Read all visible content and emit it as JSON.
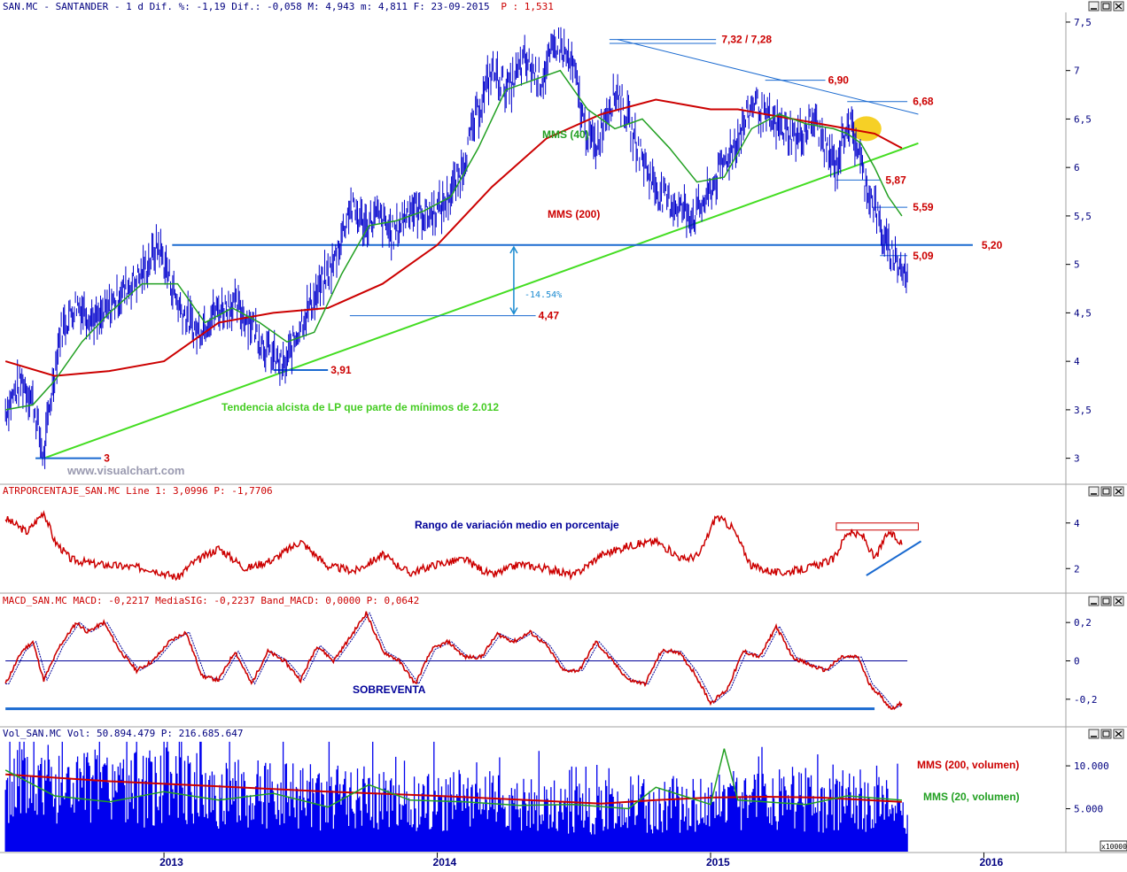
{
  "colors": {
    "price": "#0000cc",
    "mms40": "#22a022",
    "mms200": "#cc0000",
    "trend": "#44dd22",
    "support": "#1a6ad0",
    "label_red": "#cc0000",
    "header_text": "#000080",
    "header_value": "#cc0000",
    "atr_line": "#cc0000",
    "macd_line": "#cc0000",
    "macd_signal": "#000099",
    "volume_bars": "#0000ee",
    "vol_mms200": "#cc0000",
    "vol_mms20": "#22a022",
    "highlight": "#f5c800"
  },
  "header": {
    "main": "SAN.MC - SANTANDER -   1 d Dif. %: -1,19 Dif.: -0,058 M: 4,943 m: 4,811 F: 23-09-2015",
    "tail": "P : 1,531"
  },
  "watermark": "www.visualchart.com",
  "window_buttons": [
    "minimize-icon",
    "maximize-icon",
    "close-icon"
  ],
  "chart_data": [
    {
      "panel": "price",
      "type": "line",
      "ylim": [
        2.75,
        7.6
      ],
      "yticks": [
        "7,5",
        "7",
        "6,5",
        "6",
        "5,5",
        "5",
        "4,5",
        "4",
        "3,5",
        "3"
      ],
      "yticks_values": [
        7.5,
        7.0,
        6.5,
        6.0,
        5.5,
        5.0,
        4.5,
        4.0,
        3.5,
        3.0
      ],
      "series": [
        {
          "name": "",
          "x": [
            2012.42,
            2012.48,
            2012.52,
            2012.56,
            2012.58,
            2012.62,
            2012.68,
            2012.76,
            2012.84,
            2012.92,
            2012.98,
            2013.05,
            2013.12,
            2013.18,
            2013.25,
            2013.32,
            2013.38,
            2013.44,
            2013.5,
            2013.56,
            2013.62,
            2013.68,
            2013.74,
            2013.78,
            2013.84,
            2013.9,
            2013.96,
            2014.02,
            2014.08,
            2014.14,
            2014.2,
            2014.26,
            2014.32,
            2014.38,
            2014.44,
            2014.5,
            2014.54,
            2014.58,
            2014.62,
            2014.66,
            2014.72,
            2014.78,
            2014.82,
            2014.88,
            2014.94,
            2015.0,
            2015.04,
            2015.1,
            2015.16,
            2015.2,
            2015.26,
            2015.32,
            2015.38,
            2015.42,
            2015.46,
            2015.5,
            2015.54,
            2015.56,
            2015.6,
            2015.62,
            2015.64,
            2015.68,
            2015.7,
            2015.72
          ],
          "values": [
            3.5,
            3.8,
            3.6,
            3.0,
            3.5,
            4.3,
            4.6,
            4.4,
            4.7,
            4.9,
            5.2,
            4.6,
            4.3,
            4.5,
            4.6,
            4.4,
            4.1,
            3.92,
            4.4,
            4.7,
            5.0,
            5.6,
            5.4,
            5.5,
            5.3,
            5.6,
            5.5,
            5.6,
            5.9,
            6.5,
            7.0,
            6.8,
            7.1,
            6.9,
            7.3,
            7.0,
            6.4,
            6.2,
            6.6,
            6.8,
            6.3,
            5.9,
            5.7,
            5.6,
            5.5,
            5.75,
            6.0,
            6.3,
            6.7,
            6.5,
            6.4,
            6.3,
            6.5,
            6.2,
            6.0,
            6.5,
            6.2,
            5.9,
            5.6,
            5.4,
            5.2,
            5.05,
            4.95,
            4.85
          ]
        },
        {
          "name": "MMS (40)",
          "x": [
            2012.42,
            2012.52,
            2012.6,
            2012.7,
            2012.8,
            2012.92,
            2013.05,
            2013.15,
            2013.25,
            2013.35,
            2013.45,
            2013.55,
            2013.65,
            2013.75,
            2013.85,
            2013.95,
            2014.05,
            2014.15,
            2014.25,
            2014.35,
            2014.45,
            2014.55,
            2014.65,
            2014.75,
            2014.85,
            2014.95,
            2015.05,
            2015.15,
            2015.25,
            2015.35,
            2015.45,
            2015.5,
            2015.55,
            2015.6,
            2015.65,
            2015.7
          ],
          "values": [
            3.5,
            3.55,
            3.8,
            4.2,
            4.5,
            4.8,
            4.8,
            4.4,
            4.55,
            4.4,
            4.2,
            4.3,
            4.9,
            5.4,
            5.45,
            5.55,
            5.7,
            6.2,
            6.8,
            6.9,
            7.0,
            6.6,
            6.4,
            6.5,
            6.2,
            5.85,
            5.9,
            6.4,
            6.55,
            6.45,
            6.4,
            6.35,
            6.25,
            6.0,
            5.7,
            5.5
          ]
        },
        {
          "name": "MMS (200)",
          "x": [
            2012.42,
            2012.6,
            2012.8,
            2013.0,
            2013.2,
            2013.4,
            2013.6,
            2013.8,
            2014.0,
            2014.2,
            2014.4,
            2014.6,
            2014.8,
            2014.9,
            2015.0,
            2015.1,
            2015.2,
            2015.3,
            2015.4,
            2015.5,
            2015.6,
            2015.7
          ],
          "values": [
            4.0,
            3.85,
            3.9,
            4.0,
            4.4,
            4.5,
            4.55,
            4.8,
            5.2,
            5.8,
            6.3,
            6.55,
            6.7,
            6.65,
            6.6,
            6.6,
            6.55,
            6.5,
            6.45,
            6.4,
            6.35,
            6.2
          ]
        }
      ],
      "levels": [
        {
          "label": "7,32 / 7,28",
          "value": 7.32
        },
        {
          "label": "6,90",
          "value": 6.9
        },
        {
          "label": "6,68",
          "value": 6.68
        },
        {
          "label": "5,87",
          "value": 5.87
        },
        {
          "label": "5,59",
          "value": 5.59
        },
        {
          "label": "5,20",
          "value": 5.2
        },
        {
          "label": "5,09",
          "value": 5.09
        },
        {
          "label": "4,47",
          "value": 4.47
        },
        {
          "label": "3,91",
          "value": 3.91
        },
        {
          "label": "3",
          "value": 3.0
        }
      ],
      "annotations": [
        {
          "text": "MMS (40)",
          "role": "mms40-label"
        },
        {
          "text": "MMS (200)",
          "role": "mms200-label"
        },
        {
          "text": "-14.54%",
          "role": "percent-drop"
        },
        {
          "text": "Tendencia alcista de LP que parte de mínimos de 2.012",
          "role": "trend-label"
        }
      ]
    },
    {
      "panel": "atr",
      "type": "line",
      "title": "ATRPORCENTAJE_SAN.MC Line 1: 3,0996 P: -1,7706",
      "annotation": "Rango de variación medio en porcentaje",
      "yticks": [
        "4",
        "2"
      ],
      "yticks_values": [
        4,
        2
      ],
      "ylim": [
        1.0,
        5.0
      ],
      "x": [
        2012.42,
        2012.5,
        2012.56,
        2012.6,
        2012.66,
        2012.75,
        2012.85,
        2012.95,
        2013.05,
        2013.1,
        2013.2,
        2013.3,
        2013.4,
        2013.5,
        2013.6,
        2013.7,
        2013.8,
        2013.9,
        2014.0,
        2014.1,
        2014.2,
        2014.3,
        2014.4,
        2014.5,
        2014.6,
        2014.7,
        2014.8,
        2014.9,
        2014.96,
        2015.02,
        2015.08,
        2015.15,
        2015.25,
        2015.35,
        2015.45,
        2015.5,
        2015.56,
        2015.6,
        2015.65,
        2015.7
      ],
      "values": [
        4.2,
        3.6,
        4.5,
        3.2,
        2.4,
        2.2,
        2.1,
        2.0,
        1.6,
        2.2,
        2.9,
        2.0,
        2.4,
        3.2,
        2.1,
        1.9,
        2.6,
        1.8,
        2.2,
        2.4,
        1.7,
        2.2,
        2.0,
        1.7,
        2.6,
        3.0,
        3.2,
        2.4,
        2.6,
        4.3,
        3.8,
        2.1,
        1.8,
        2.0,
        2.4,
        3.6,
        3.4,
        2.4,
        3.6,
        3.1
      ]
    },
    {
      "panel": "macd",
      "type": "line",
      "title": "MACD_SAN.MC MACD: -0,2217 MediaSIG: -0,2237 Band_MACD: 0,0000 P: 0,0642",
      "annotation": "SOBREVENTA",
      "yticks": [
        "0,2",
        "0",
        "-0,2"
      ],
      "yticks_values": [
        0.2,
        0.0,
        -0.2
      ],
      "ylim": [
        -0.33,
        0.27
      ],
      "x": [
        2012.42,
        2012.48,
        2012.52,
        2012.56,
        2012.62,
        2012.68,
        2012.72,
        2012.78,
        2012.84,
        2012.9,
        2012.96,
        2013.02,
        2013.08,
        2013.14,
        2013.2,
        2013.26,
        2013.32,
        2013.38,
        2013.44,
        2013.5,
        2013.56,
        2013.62,
        2013.68,
        2013.74,
        2013.8,
        2013.86,
        2013.92,
        2013.98,
        2014.04,
        2014.1,
        2014.16,
        2014.22,
        2014.28,
        2014.34,
        2014.4,
        2014.46,
        2014.52,
        2014.58,
        2014.64,
        2014.7,
        2014.76,
        2014.82,
        2014.88,
        2014.94,
        2015.0,
        2015.06,
        2015.12,
        2015.18,
        2015.24,
        2015.3,
        2015.36,
        2015.42,
        2015.48,
        2015.54,
        2015.58,
        2015.62,
        2015.66,
        2015.7
      ],
      "values": [
        -0.12,
        0.05,
        0.1,
        -0.1,
        0.08,
        0.2,
        0.15,
        0.2,
        0.05,
        -0.05,
        0.0,
        0.1,
        0.15,
        -0.08,
        -0.1,
        0.05,
        -0.12,
        0.05,
        0.0,
        -0.1,
        0.08,
        0.0,
        0.12,
        0.25,
        0.05,
        0.0,
        -0.12,
        0.06,
        0.1,
        0.02,
        0.02,
        0.14,
        0.1,
        0.15,
        0.08,
        -0.05,
        -0.05,
        0.1,
        0.0,
        -0.1,
        -0.12,
        0.05,
        0.05,
        -0.06,
        -0.22,
        -0.15,
        0.05,
        0.02,
        0.18,
        0.02,
        -0.02,
        -0.05,
        0.02,
        0.02,
        -0.12,
        -0.18,
        -0.25,
        -0.22
      ]
    },
    {
      "panel": "volume",
      "type": "bar",
      "title": "Vol_SAN.MC Vol: 50.894.479 P: 216.685.647",
      "yticks": [
        "10.000",
        "5.000"
      ],
      "yticks_values": [
        10000,
        5000
      ],
      "ylim": [
        0,
        13000
      ],
      "unit_label": "x10000",
      "series": [
        {
          "name": "MMS (200, volumen)",
          "x": [
            2012.42,
            2012.8,
            2013.2,
            2013.6,
            2014.0,
            2014.4,
            2014.6,
            2014.8,
            2015.0,
            2015.2,
            2015.4,
            2015.7
          ],
          "values": [
            9000,
            8200,
            7600,
            7000,
            6500,
            5900,
            5600,
            6000,
            6300,
            6400,
            6300,
            5800
          ]
        },
        {
          "name": "MMS (20, volumen)",
          "x": [
            2012.42,
            2012.6,
            2012.8,
            2013.0,
            2013.2,
            2013.4,
            2013.6,
            2013.75,
            2013.9,
            2014.1,
            2014.3,
            2014.5,
            2014.7,
            2014.8,
            2014.9,
            2015.0,
            2015.05,
            2015.1,
            2015.2,
            2015.35,
            2015.5,
            2015.7
          ],
          "values": [
            9500,
            6500,
            5800,
            7000,
            6000,
            6800,
            5200,
            7800,
            6000,
            5800,
            5400,
            5500,
            5000,
            7500,
            6500,
            5500,
            12000,
            6000,
            5800,
            5500,
            6500,
            6000
          ]
        }
      ]
    }
  ],
  "x_axis": {
    "ticks": [
      "2013",
      "2014",
      "2015",
      "2016"
    ],
    "ticks_values": [
      2013.0,
      2014.0,
      2015.0,
      2016.0
    ],
    "xlim": [
      2012.4,
      2016.3
    ]
  }
}
